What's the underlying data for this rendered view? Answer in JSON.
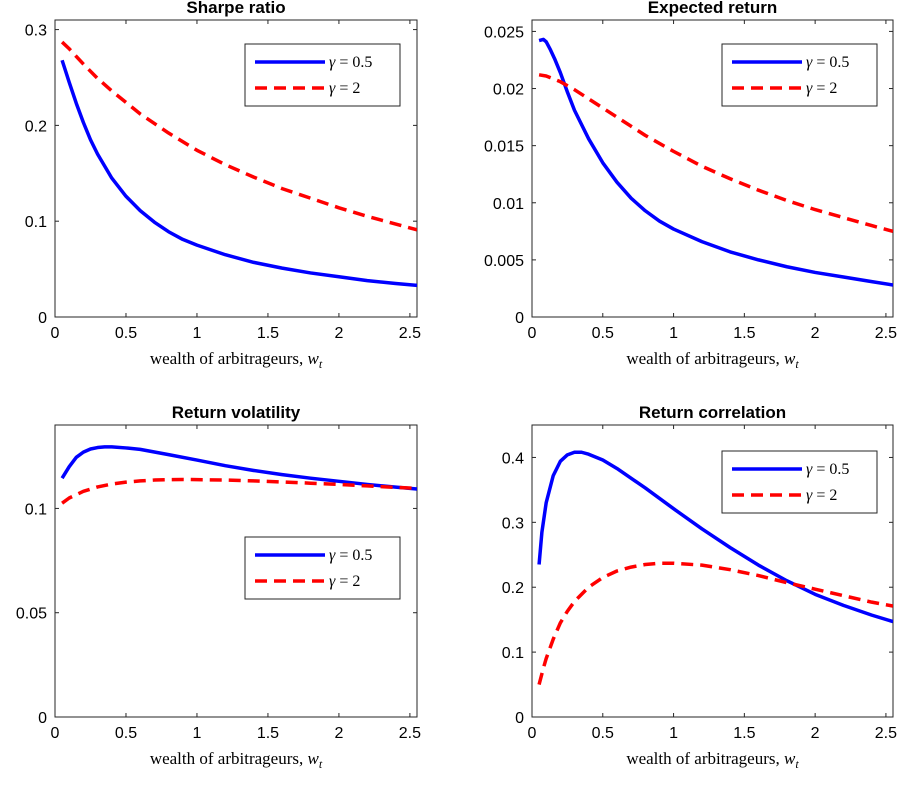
{
  "figure": {
    "xlabel_text": "wealth of arbitrageurs, ",
    "xlabel_var": "w",
    "xlabel_sub": "t"
  },
  "chart_data": [
    {
      "type": "line",
      "title": "Sharpe ratio",
      "xlabel": "wealth of arbitrageurs, w_t",
      "ylabel": "",
      "xlim": [
        0,
        2.55
      ],
      "ylim": [
        0,
        0.31
      ],
      "xticks": [
        0,
        0.5,
        1,
        1.5,
        2,
        2.5
      ],
      "xtick_labels": [
        "0",
        "0.5",
        "1",
        "1.5",
        "2",
        "2.5"
      ],
      "yticks": [
        0,
        0.1,
        0.2,
        0.3
      ],
      "ytick_labels": [
        "0",
        "0.1",
        "0.2",
        "0.3"
      ],
      "grid": false,
      "legend_position": "top-right",
      "series": [
        {
          "name": "γ = 0.5",
          "color": "#0000ff",
          "style": "solid",
          "x": [
            0.05,
            0.1,
            0.15,
            0.2,
            0.25,
            0.3,
            0.4,
            0.5,
            0.6,
            0.7,
            0.8,
            0.9,
            1.0,
            1.2,
            1.4,
            1.6,
            1.8,
            2.0,
            2.2,
            2.4,
            2.55
          ],
          "y": [
            0.268,
            0.245,
            0.223,
            0.203,
            0.185,
            0.17,
            0.145,
            0.126,
            0.111,
            0.099,
            0.089,
            0.081,
            0.075,
            0.065,
            0.057,
            0.051,
            0.046,
            0.042,
            0.038,
            0.035,
            0.033
          ]
        },
        {
          "name": "γ = 2",
          "color": "#ff0000",
          "style": "dashed",
          "x": [
            0.05,
            0.1,
            0.2,
            0.3,
            0.4,
            0.5,
            0.6,
            0.8,
            1.0,
            1.2,
            1.4,
            1.6,
            1.8,
            2.0,
            2.2,
            2.4,
            2.55
          ],
          "y": [
            0.287,
            0.28,
            0.264,
            0.249,
            0.236,
            0.224,
            0.212,
            0.192,
            0.174,
            0.159,
            0.146,
            0.134,
            0.124,
            0.114,
            0.105,
            0.097,
            0.091
          ]
        }
      ]
    },
    {
      "type": "line",
      "title": "Expected return",
      "xlabel": "wealth of arbitrageurs, w_t",
      "ylabel": "",
      "xlim": [
        0,
        2.55
      ],
      "ylim": [
        0,
        0.026
      ],
      "xticks": [
        0,
        0.5,
        1,
        1.5,
        2,
        2.5
      ],
      "xtick_labels": [
        "0",
        "0.5",
        "1",
        "1.5",
        "2",
        "2.5"
      ],
      "yticks": [
        0,
        0.005,
        0.01,
        0.015,
        0.02,
        0.025
      ],
      "ytick_labels": [
        "0",
        "0.005",
        "0.01",
        "0.015",
        "0.02",
        "0.025"
      ],
      "grid": false,
      "legend_position": "top-right",
      "series": [
        {
          "name": "γ = 0.5",
          "color": "#0000ff",
          "style": "solid",
          "x": [
            0.05,
            0.08,
            0.1,
            0.13,
            0.16,
            0.2,
            0.25,
            0.3,
            0.4,
            0.5,
            0.6,
            0.7,
            0.8,
            0.9,
            1.0,
            1.2,
            1.4,
            1.6,
            1.8,
            2.0,
            2.2,
            2.4,
            2.55
          ],
          "y": [
            0.0242,
            0.0243,
            0.0241,
            0.0234,
            0.0226,
            0.0214,
            0.0197,
            0.0181,
            0.0156,
            0.0135,
            0.0118,
            0.0104,
            0.0093,
            0.0084,
            0.0077,
            0.0066,
            0.0057,
            0.005,
            0.0044,
            0.0039,
            0.0035,
            0.0031,
            0.0028
          ]
        },
        {
          "name": "γ = 2",
          "color": "#ff0000",
          "style": "dashed",
          "x": [
            0.05,
            0.1,
            0.2,
            0.3,
            0.4,
            0.5,
            0.6,
            0.8,
            1.0,
            1.2,
            1.4,
            1.6,
            1.8,
            2.0,
            2.2,
            2.4,
            2.55
          ],
          "y": [
            0.0212,
            0.0211,
            0.0206,
            0.0199,
            0.0191,
            0.0183,
            0.0175,
            0.0159,
            0.0145,
            0.0132,
            0.0121,
            0.0111,
            0.0102,
            0.0094,
            0.0087,
            0.008,
            0.0075
          ]
        }
      ]
    },
    {
      "type": "line",
      "title": "Return volatility",
      "xlabel": "wealth of arbitrageurs, w_t",
      "ylabel": "",
      "xlim": [
        0,
        2.55
      ],
      "ylim": [
        0,
        0.14
      ],
      "xticks": [
        0,
        0.5,
        1,
        1.5,
        2,
        2.5
      ],
      "xtick_labels": [
        "0",
        "0.5",
        "1",
        "1.5",
        "2",
        "2.5"
      ],
      "yticks": [
        0,
        0.05,
        0.1
      ],
      "ytick_labels": [
        "0",
        "0.05",
        "0.1"
      ],
      "grid": false,
      "legend_position": "middle-right",
      "series": [
        {
          "name": "γ = 0.5",
          "color": "#0000ff",
          "style": "solid",
          "x": [
            0.05,
            0.1,
            0.15,
            0.2,
            0.25,
            0.3,
            0.35,
            0.4,
            0.5,
            0.6,
            0.8,
            1.0,
            1.2,
            1.4,
            1.6,
            1.8,
            2.0,
            2.2,
            2.4,
            2.55
          ],
          "y": [
            0.1145,
            0.12,
            0.1245,
            0.127,
            0.1285,
            0.1292,
            0.1295,
            0.1295,
            0.129,
            0.1283,
            0.1258,
            0.1232,
            0.1205,
            0.1182,
            0.1162,
            0.1145,
            0.113,
            0.1115,
            0.1102,
            0.1093
          ]
        },
        {
          "name": "γ = 2",
          "color": "#ff0000",
          "style": "dashed",
          "x": [
            0.05,
            0.1,
            0.2,
            0.3,
            0.4,
            0.5,
            0.6,
            0.7,
            0.8,
            0.9,
            1.0,
            1.2,
            1.4,
            1.6,
            1.8,
            2.0,
            2.2,
            2.4,
            2.55
          ],
          "y": [
            0.1025,
            0.105,
            0.1082,
            0.1103,
            0.1117,
            0.1126,
            0.1132,
            0.1136,
            0.1138,
            0.1139,
            0.1138,
            0.1136,
            0.1132,
            0.1127,
            0.1121,
            0.1115,
            0.1108,
            0.1101,
            0.1096
          ]
        }
      ]
    },
    {
      "type": "line",
      "title": "Return correlation",
      "xlabel": "wealth of arbitrageurs, w_t",
      "ylabel": "",
      "xlim": [
        0,
        2.55
      ],
      "ylim": [
        0,
        0.45
      ],
      "xticks": [
        0,
        0.5,
        1,
        1.5,
        2,
        2.5
      ],
      "xtick_labels": [
        "0",
        "0.5",
        "1",
        "1.5",
        "2",
        "2.5"
      ],
      "yticks": [
        0,
        0.1,
        0.2,
        0.3,
        0.4
      ],
      "ytick_labels": [
        "0",
        "0.1",
        "0.2",
        "0.3",
        "0.4"
      ],
      "grid": false,
      "legend_position": "top-right",
      "series": [
        {
          "name": "γ = 0.5",
          "color": "#0000ff",
          "style": "solid",
          "x": [
            0.05,
            0.07,
            0.1,
            0.15,
            0.2,
            0.25,
            0.3,
            0.35,
            0.4,
            0.5,
            0.6,
            0.8,
            1.0,
            1.2,
            1.4,
            1.6,
            1.8,
            2.0,
            2.2,
            2.4,
            2.55
          ],
          "y": [
            0.235,
            0.285,
            0.33,
            0.372,
            0.394,
            0.404,
            0.408,
            0.408,
            0.405,
            0.396,
            0.383,
            0.353,
            0.321,
            0.29,
            0.261,
            0.234,
            0.21,
            0.189,
            0.172,
            0.157,
            0.147
          ]
        },
        {
          "name": "γ = 2",
          "color": "#ff0000",
          "style": "dashed",
          "x": [
            0.05,
            0.08,
            0.1,
            0.15,
            0.2,
            0.25,
            0.3,
            0.4,
            0.5,
            0.6,
            0.7,
            0.8,
            0.9,
            1.0,
            1.2,
            1.4,
            1.6,
            1.8,
            2.0,
            2.2,
            2.4,
            2.55
          ],
          "y": [
            0.05,
            0.075,
            0.09,
            0.12,
            0.145,
            0.163,
            0.178,
            0.2,
            0.215,
            0.225,
            0.231,
            0.235,
            0.237,
            0.237,
            0.234,
            0.227,
            0.218,
            0.207,
            0.197,
            0.187,
            0.177,
            0.171
          ]
        }
      ]
    }
  ]
}
